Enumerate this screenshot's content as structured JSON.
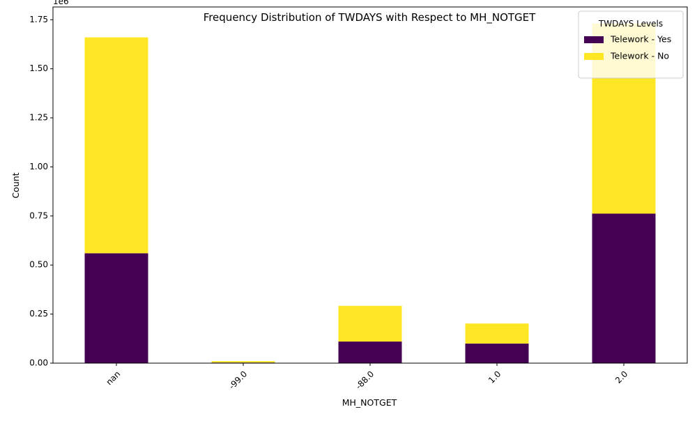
{
  "chart_data": {
    "type": "bar",
    "stacked": true,
    "title": "Frequency Distribution of TWDAYS with Respect to MH_NOTGET",
    "xlabel": "MH_NOTGET",
    "ylabel": "Count",
    "y_offset_text": "1e6",
    "categories": [
      "nan",
      "-99.0",
      "-88.0",
      "1.0",
      "2.0"
    ],
    "series": [
      {
        "name": "Telework - Yes",
        "color": "#440154",
        "values": [
          560000,
          3000,
          110000,
          100000,
          762000
        ]
      },
      {
        "name": "Telework - No",
        "color": "#fde725",
        "values": [
          1100000,
          7000,
          182000,
          102000,
          968000
        ]
      }
    ],
    "ylim": [
      0,
      1815000
    ],
    "yticks": [
      0,
      250000,
      500000,
      750000,
      1000000,
      1250000,
      1500000,
      1750000
    ],
    "ytick_labels": [
      "0.00",
      "0.25",
      "0.50",
      "0.75",
      "1.00",
      "1.25",
      "1.50",
      "1.75"
    ],
    "legend": {
      "title": "TWDAYS Levels",
      "placement": "top-right"
    },
    "grid": false
  }
}
